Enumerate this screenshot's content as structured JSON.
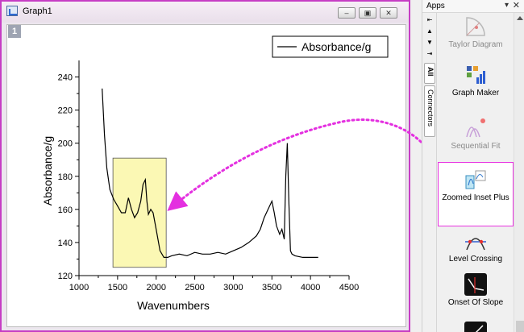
{
  "graph_window": {
    "title": "Graph1",
    "page_label": "1",
    "buttons": {
      "minimize": "–",
      "restore": "▣",
      "close": "✕"
    }
  },
  "apps_panel": {
    "title": "Apps",
    "pin_icon": "▾",
    "close_icon": "✕",
    "tabs": [
      "All",
      "Connectors"
    ],
    "items": [
      {
        "label": "Taylor Diagram",
        "dim": true
      },
      {
        "label": "Graph Maker",
        "dim": false
      },
      {
        "label": "Sequential Fit",
        "dim": true
      },
      {
        "label": "Zoomed Inset Plus",
        "dim": false,
        "selected": true
      },
      {
        "label": "Level Crossing",
        "dim": false
      },
      {
        "label": "Onset Of Slope",
        "dim": false
      }
    ]
  },
  "chart_data": {
    "type": "line",
    "xlabel": "Wavenumbers",
    "ylabel": "Absorbance/g",
    "xlim": [
      1000,
      4500
    ],
    "ylim": [
      120,
      250
    ],
    "x_ticks": [
      1000,
      1500,
      2000,
      2500,
      3000,
      3500,
      4000,
      4500
    ],
    "y_ticks": [
      120,
      140,
      160,
      180,
      200,
      220,
      240
    ],
    "legend": "top-right",
    "grid": false,
    "series": [
      {
        "name": "Absorbance/g",
        "color": "#000000",
        "x": [
          1300,
          1330,
          1360,
          1400,
          1450,
          1500,
          1550,
          1600,
          1640,
          1680,
          1720,
          1760,
          1800,
          1830,
          1860,
          1880,
          1900,
          1930,
          1960,
          2000,
          2050,
          2100,
          2150,
          2200,
          2300,
          2400,
          2500,
          2600,
          2700,
          2800,
          2900,
          3000,
          3100,
          3200,
          3300,
          3350,
          3400,
          3450,
          3500,
          3530,
          3560,
          3600,
          3630,
          3660,
          3680,
          3700,
          3720,
          3740,
          3760,
          3800,
          3900,
          4000,
          4100
        ],
        "y": [
          233,
          205,
          185,
          172,
          166,
          162,
          158,
          158,
          167,
          160,
          155,
          158,
          165,
          175,
          178,
          165,
          157,
          160,
          158,
          148,
          135,
          131,
          131,
          132,
          133,
          132,
          134,
          133,
          133,
          134,
          133,
          135,
          137,
          140,
          144,
          148,
          155,
          160,
          165,
          158,
          150,
          145,
          148,
          142,
          180,
          200,
          165,
          135,
          133,
          132,
          131,
          131,
          131
        ]
      }
    ],
    "annotation_box": {
      "x": [
        1440,
        2130
      ],
      "y": [
        125,
        191
      ]
    }
  }
}
